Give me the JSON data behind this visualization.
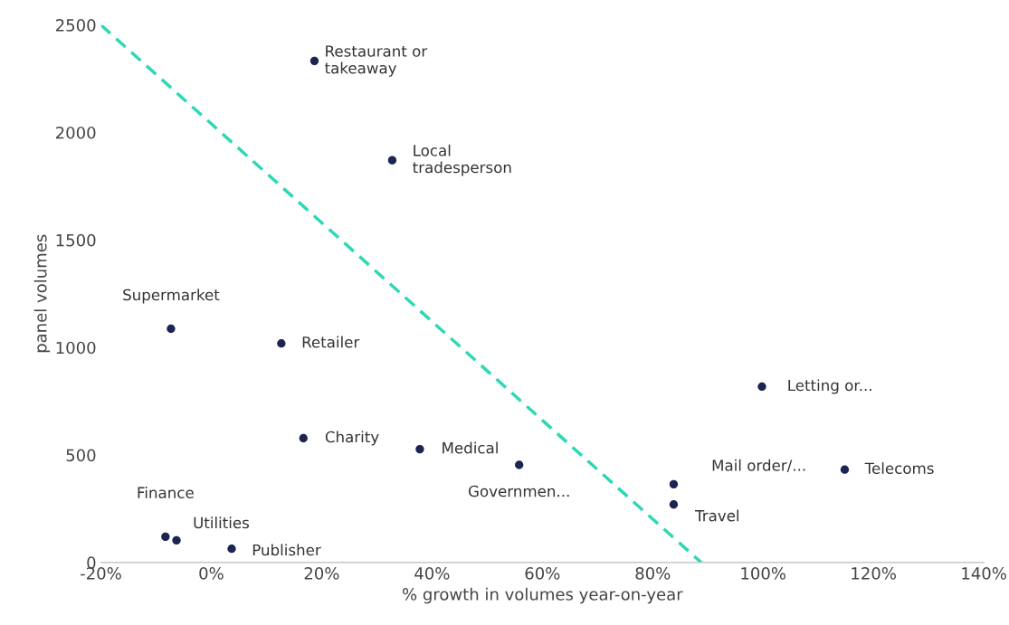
{
  "chart_data": {
    "type": "scatter",
    "xlabel": "% growth in volumes year-on-year",
    "ylabel": "panel volumes",
    "series": [
      {
        "color": "#1c2452",
        "marker": "circle",
        "x": [
          18.7,
          32.8,
          -7.3,
          12.7,
          99.8,
          16.7,
          37.8,
          55.8,
          83.8,
          114.8,
          83.8,
          -8.3,
          -6.3,
          3.7
        ],
        "values": [
          2333,
          1871,
          1087,
          1019,
          818,
          578,
          527,
          454,
          364,
          432,
          270,
          120,
          103,
          64
        ]
      },
      {
        "type": "line",
        "color": "#2ed8b6",
        "line_style": "dashed",
        "marker": "none",
        "x": [
          -20,
          88.8
        ],
        "values": [
          2500,
          0
        ]
      }
    ],
    "annotations": [
      {
        "text": "Restaurant or\ntakeaway",
        "x": 18.7,
        "y": 2333
      },
      {
        "text": "Local\ntradesperson",
        "x": 32.8,
        "y": 1871
      },
      {
        "text": "Supermarket",
        "x": -7.3,
        "y": 1087
      },
      {
        "text": "Retailer",
        "x": 12.7,
        "y": 1019
      },
      {
        "text": "Letting or...",
        "x": 99.8,
        "y": 818
      },
      {
        "text": "Charity",
        "x": 16.7,
        "y": 578
      },
      {
        "text": "Medical",
        "x": 37.8,
        "y": 527
      },
      {
        "text": "Governmen...",
        "x": 55.8,
        "y": 454
      },
      {
        "text": "Mail order/...",
        "x": 83.8,
        "y": 364
      },
      {
        "text": "Telecoms",
        "x": 114.8,
        "y": 432
      },
      {
        "text": "Travel",
        "x": 83.8,
        "y": 270
      },
      {
        "text": "Finance",
        "x": -8.3,
        "y": 120
      },
      {
        "text": "Utilities",
        "x": -6.3,
        "y": 103
      },
      {
        "text": "Publisher",
        "x": 3.7,
        "y": 64
      }
    ],
    "xlim": [
      -20,
      140
    ],
    "xticks": [
      {
        "value": -20,
        "label": "-20%"
      },
      {
        "value": 0,
        "label": "0%"
      },
      {
        "value": 20,
        "label": "20%"
      },
      {
        "value": 40,
        "label": "40%"
      },
      {
        "value": 60,
        "label": "60%"
      },
      {
        "value": 80,
        "label": "80%"
      },
      {
        "value": 100,
        "label": "100%"
      },
      {
        "value": 120,
        "label": "120%"
      },
      {
        "value": 140,
        "label": "140%"
      }
    ],
    "ylim": [
      0,
      2500
    ],
    "yticks": [
      0,
      500,
      1000,
      1500,
      2000,
      2500
    ],
    "grid": false,
    "legend": false
  }
}
